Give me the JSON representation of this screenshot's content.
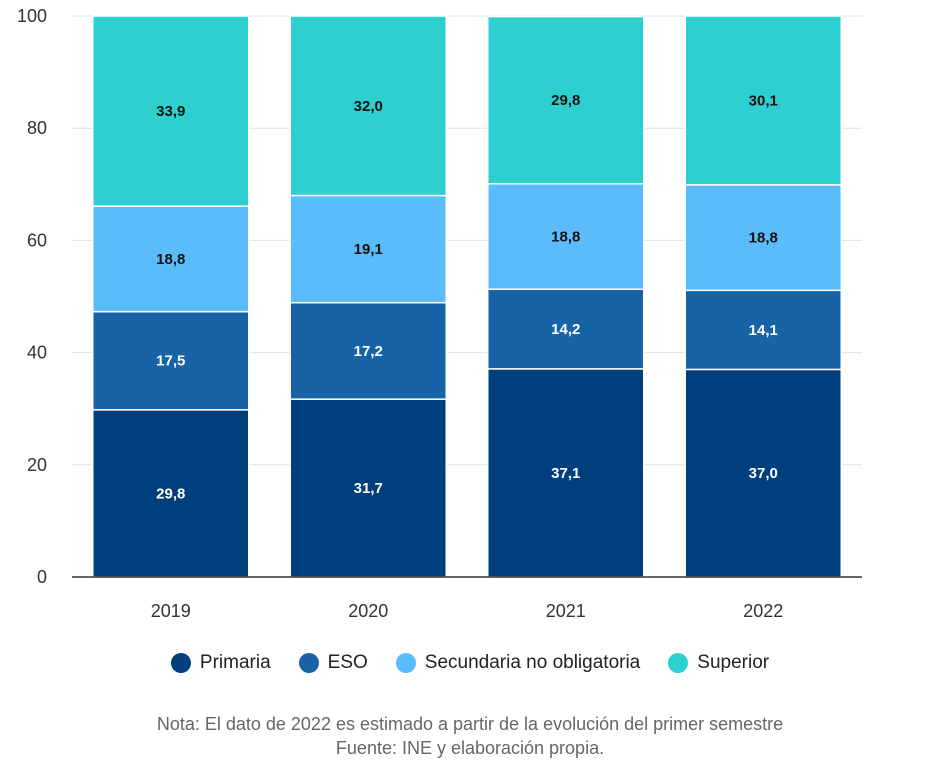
{
  "chart_data": {
    "type": "bar",
    "stacked": true,
    "categories": [
      "2019",
      "2020",
      "2021",
      "2022"
    ],
    "series": [
      {
        "name": "Primaria",
        "color": "#003f7d",
        "label_color": "#ffffff",
        "values": [
          29.8,
          31.7,
          37.1,
          37.0
        ],
        "labels": [
          "29,8",
          "31,7",
          "37,1",
          "37,0"
        ]
      },
      {
        "name": "ESO",
        "color": "#1763a6",
        "label_color": "#ffffff",
        "values": [
          17.5,
          17.2,
          14.2,
          14.1
        ],
        "labels": [
          "17,5",
          "17,2",
          "14,2",
          "14,1"
        ]
      },
      {
        "name": "Secundaria no obligatoria",
        "color": "#5bbcfb",
        "label_color": "#111111",
        "values": [
          18.8,
          19.1,
          18.8,
          18.8
        ],
        "labels": [
          "18,8",
          "19,1",
          "18,8",
          "18,8"
        ]
      },
      {
        "name": "Superior",
        "color": "#2ecfcf",
        "label_color": "#111111",
        "values": [
          33.9,
          32.0,
          29.8,
          30.1
        ],
        "labels": [
          "33,9",
          "32,0",
          "29,8",
          "30,1"
        ]
      }
    ],
    "ylim": [
      0,
      100
    ],
    "yticks": [
      "0",
      "20",
      "40",
      "60",
      "80",
      "100"
    ],
    "grid": true,
    "legend_position": "bottom"
  },
  "footer": {
    "note": "Nota: El dato de 2022 es estimado a partir de la evolución del primer semestre",
    "source": "Fuente: INE y elaboración propia."
  }
}
